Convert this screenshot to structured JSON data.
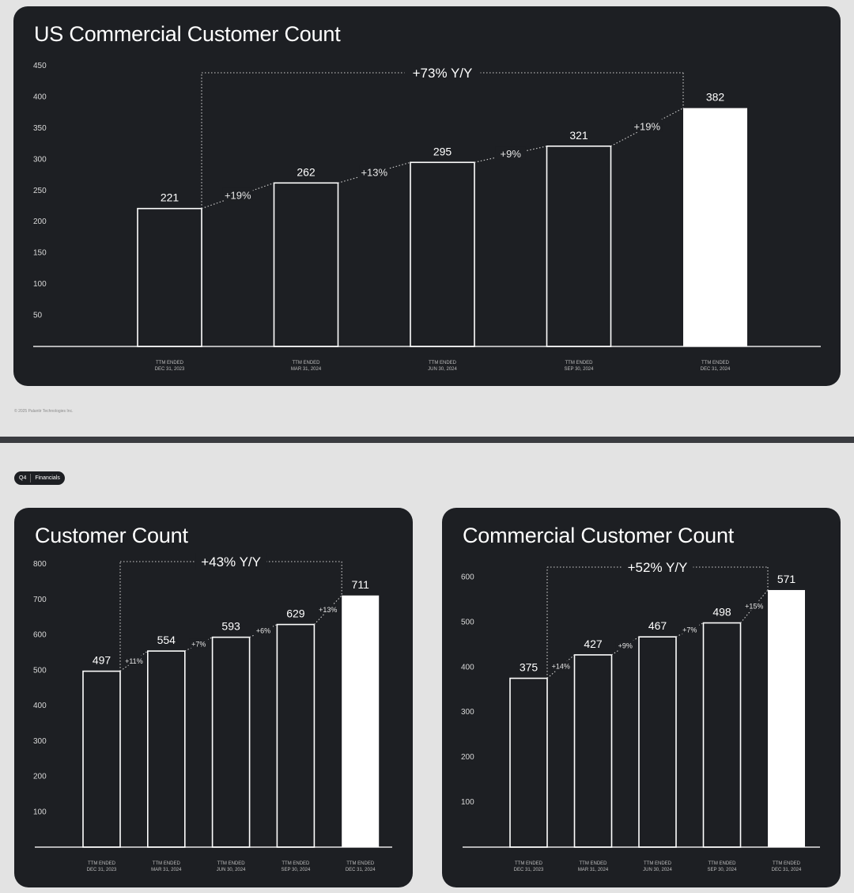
{
  "footer": {
    "copyright": "© 2025 Palantir Technologies Inc."
  },
  "badge": {
    "quarter": "Q4",
    "section": "Financials"
  },
  "chart_data": [
    {
      "id": "top",
      "type": "bar",
      "title": "US Commercial Customer Count",
      "categories": [
        [
          "TTM ENDED",
          "DEC 31, 2023"
        ],
        [
          "TTM ENDED",
          "MAR 31, 2024"
        ],
        [
          "TTM ENDED",
          "JUN 30, 2024"
        ],
        [
          "TTM ENDED",
          "SEP 30, 2024"
        ],
        [
          "TTM ENDED",
          "DEC 31, 2024"
        ]
      ],
      "values": [
        221,
        262,
        295,
        321,
        382
      ],
      "value_labels": [
        "221",
        "262",
        "295",
        "321",
        "382"
      ],
      "growth_labels": [
        "+19%",
        "+13%",
        "+9%",
        "+19%"
      ],
      "yoy_label": "+73% Y/Y",
      "yticks": [
        50,
        100,
        150,
        200,
        250,
        300,
        350,
        400,
        450
      ],
      "ylim": [
        0,
        450
      ],
      "highlight_last": true,
      "colors": {
        "bar_outline": "#ffffff",
        "highlight_fill": "#ffffff",
        "background": "#1d1f23"
      }
    },
    {
      "id": "left",
      "type": "bar",
      "title": "Customer Count",
      "categories": [
        [
          "TTM ENDED",
          "DEC 31, 2023"
        ],
        [
          "TTM ENDED",
          "MAR 31, 2024"
        ],
        [
          "TTM ENDED",
          "JUN 30, 2024"
        ],
        [
          "TTM ENDED",
          "SEP 30, 2024"
        ],
        [
          "TTM ENDED",
          "DEC 31, 2024"
        ]
      ],
      "values": [
        497,
        554,
        593,
        629,
        711
      ],
      "value_labels": [
        "497",
        "554",
        "593",
        "629",
        "711"
      ],
      "growth_labels": [
        "+11%",
        "+7%",
        "+6%",
        "+13%"
      ],
      "yoy_label": "+43% Y/Y",
      "yticks": [
        100,
        200,
        300,
        400,
        500,
        600,
        700,
        800
      ],
      "ylim": [
        0,
        800
      ],
      "highlight_last": true,
      "colors": {
        "bar_outline": "#ffffff",
        "highlight_fill": "#ffffff",
        "background": "#1d1f23"
      }
    },
    {
      "id": "right",
      "type": "bar",
      "title": "Commercial Customer Count",
      "categories": [
        [
          "TTM ENDED",
          "DEC 31, 2023"
        ],
        [
          "TTM ENDED",
          "MAR 31, 2024"
        ],
        [
          "TTM ENDED",
          "JUN 30, 2024"
        ],
        [
          "TTM ENDED",
          "SEP 30, 2024"
        ],
        [
          "TTM ENDED",
          "DEC 31, 2024"
        ]
      ],
      "values": [
        375,
        427,
        467,
        498,
        571
      ],
      "value_labels": [
        "375",
        "427",
        "467",
        "498",
        "571"
      ],
      "growth_labels": [
        "+14%",
        "+9%",
        "+7%",
        "+15%"
      ],
      "yoy_label": "+52% Y/Y",
      "yticks": [
        100,
        200,
        300,
        400,
        500,
        600
      ],
      "ylim": [
        0,
        650
      ],
      "highlight_last": true,
      "colors": {
        "bar_outline": "#ffffff",
        "highlight_fill": "#ffffff",
        "background": "#1d1f23"
      }
    }
  ]
}
